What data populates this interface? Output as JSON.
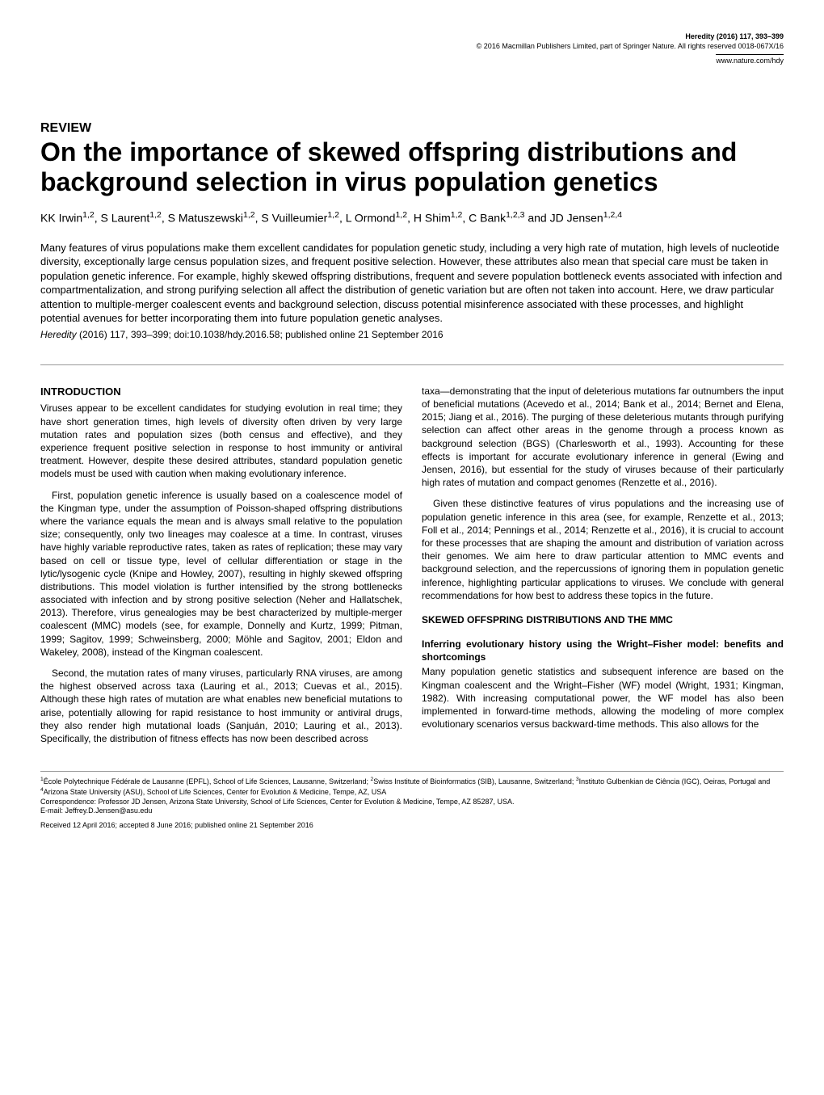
{
  "header": {
    "journal_ref": "Heredity (2016) 117, 393–399",
    "copyright": "© 2016 Macmillan Publishers Limited, part of Springer Nature. All rights reserved 0018-067X/16",
    "url": "www.nature.com/hdy"
  },
  "article": {
    "type_label": "REVIEW",
    "title": "On the importance of skewed offspring distributions and background selection in virus population genetics",
    "authors_html": "KK Irwin<sup>1,2</sup>, S Laurent<sup>1,2</sup>, S Matuszewski<sup>1,2</sup>, S Vuilleumier<sup>1,2</sup>, L Ormond<sup>1,2</sup>, H Shim<sup>1,2</sup>, C Bank<sup>1,2,3</sup> and JD Jensen<sup>1,2,4</sup>",
    "abstract": "Many features of virus populations make them excellent candidates for population genetic study, including a very high rate of mutation, high levels of nucleotide diversity, exceptionally large census population sizes, and frequent positive selection. However, these attributes also mean that special care must be taken in population genetic inference. For example, highly skewed offspring distributions, frequent and severe population bottleneck events associated with infection and compartmentalization, and strong purifying selection all affect the distribution of genetic variation but are often not taken into account. Here, we draw particular attention to multiple-merger coalescent events and background selection, discuss potential misinference associated with these processes, and highlight potential avenues for better incorporating them into future population genetic analyses.",
    "citation_journal": "Heredity",
    "citation_rest": " (2016) 117, 393–399; doi:10.1038/hdy.2016.58; published online 21 September 2016"
  },
  "sections": {
    "intro_head": "INTRODUCTION",
    "intro_p1": "Viruses appear to be excellent candidates for studying evolution in real time; they have short generation times, high levels of diversity often driven by very large mutation rates and population sizes (both census and effective), and they experience frequent positive selection in response to host immunity or antiviral treatment. However, despite these desired attributes, standard population genetic models must be used with caution when making evolutionary inference.",
    "intro_p2": "First, population genetic inference is usually based on a coalescence model of the Kingman type, under the assumption of Poisson-shaped offspring distributions where the variance equals the mean and is always small relative to the population size; consequently, only two lineages may coalesce at a time. In contrast, viruses have highly variable reproductive rates, taken as rates of replication; these may vary based on cell or tissue type, level of cellular differentiation or stage in the lytic/lysogenic cycle (Knipe and Howley, 2007), resulting in highly skewed offspring distributions. This model violation is further intensified by the strong bottlenecks associated with infection and by strong positive selection (Neher and Hallatschek, 2013). Therefore, virus genealogies may be best characterized by multiple-merger coalescent (MMC) models (see, for example, Donnelly and Kurtz, 1999; Pitman, 1999; Sagitov, 1999; Schweinsberg, 2000; Möhle and Sagitov, 2001; Eldon and Wakeley, 2008), instead of the Kingman coalescent.",
    "intro_p3": "Second, the mutation rates of many viruses, particularly RNA viruses, are among the highest observed across taxa (Lauring et al., 2013; Cuevas et al., 2015). Although these high rates of mutation are what enables new beneficial mutations to arise, potentially allowing for rapid resistance to host immunity or antiviral drugs, they also render high mutational loads (Sanjuán, 2010; Lauring et al., 2013). Specifically, the distribution of fitness effects has now been described across",
    "col2_p1": "taxa—demonstrating that the input of deleterious mutations far outnumbers the input of beneficial mutations (Acevedo et al., 2014; Bank et al., 2014; Bernet and Elena, 2015; Jiang et al., 2016). The purging of these deleterious mutants through purifying selection can affect other areas in the genome through a process known as background selection (BGS) (Charlesworth et al., 1993). Accounting for these effects is important for accurate evolutionary inference in general (Ewing and Jensen, 2016), but essential for the study of viruses because of their particularly high rates of mutation and compact genomes (Renzette et al., 2016).",
    "col2_p2": "Given these distinctive features of virus populations and the increasing use of population genetic inference in this area (see, for example, Renzette et al., 2013; Foll et al., 2014; Pennings et al., 2014; Renzette et al., 2016), it is crucial to account for these processes that are shaping the amount and distribution of variation across their genomes. We aim here to draw particular attention to MMC events and background selection, and the repercussions of ignoring them in population genetic inference, highlighting particular applications to viruses. We conclude with general recommendations for how best to address these topics in the future.",
    "skewed_head": "SKEWED OFFSPRING DISTRIBUTIONS AND THE MMC",
    "skewed_sub": "Inferring evolutionary history using the Wright–Fisher model: benefits and shortcomings",
    "skewed_p1": "Many population genetic statistics and subsequent inference are based on the Kingman coalescent and the Wright–Fisher (WF) model (Wright, 1931; Kingman, 1982). With increasing computational power, the WF model has also been implemented in forward-time methods, allowing the modeling of more complex evolutionary scenarios versus backward-time methods. This also allows for the"
  },
  "footer": {
    "affiliations_html": "<sup>1</sup>École Polytechnique Fédérale de Lausanne (EPFL), School of Life Sciences, Lausanne, Switzerland; <sup>2</sup>Swiss Institute of Bioinformatics (SIB), Lausanne, Switzerland; <sup>3</sup>Instituto Gulbenkian de Ciência (IGC), Oeiras, Portugal and <sup>4</sup>Arizona State University (ASU), School of Life Sciences, Center for Evolution & Medicine, Tempe, AZ, USA",
    "correspondence": "Correspondence: Professor JD Jensen, Arizona State University, School of Life Sciences, Center for Evolution & Medicine, Tempe, AZ 85287, USA.",
    "email": "E-mail: Jeffrey.D.Jensen@asu.edu",
    "received": "Received 12 April 2016; accepted 8 June 2016; published online 21 September 2016"
  }
}
